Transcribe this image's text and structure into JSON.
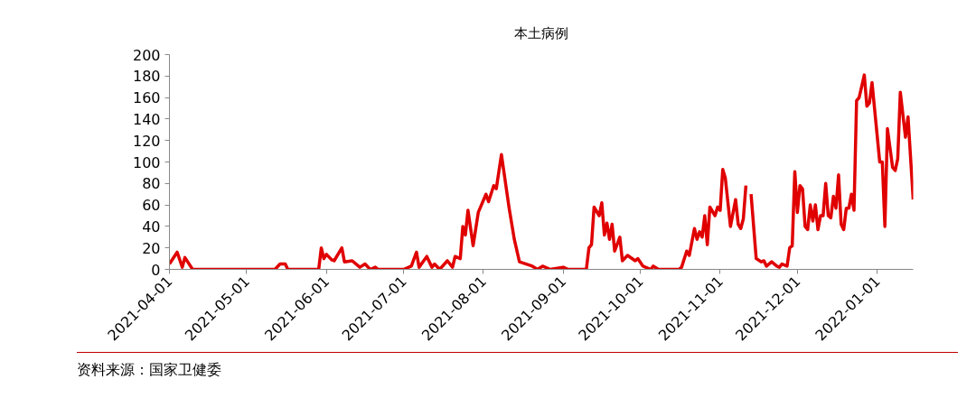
{
  "chart_data": {
    "type": "line",
    "title": "本土病例",
    "x": [
      "2021-04-01",
      "2021-04-04",
      "2021-04-06",
      "2021-04-07",
      "2021-04-10",
      "2021-05-12",
      "2021-05-14",
      "2021-05-16",
      "2021-05-17",
      "2021-05-29",
      "2021-05-30",
      "2021-05-31",
      "2021-06-01",
      "2021-06-03",
      "2021-06-04",
      "2021-06-07",
      "2021-06-08",
      "2021-06-11",
      "2021-06-14",
      "2021-06-16",
      "2021-06-18",
      "2021-06-20",
      "2021-06-21",
      "2021-07-01",
      "2021-07-04",
      "2021-07-06",
      "2021-07-07",
      "2021-07-10",
      "2021-07-12",
      "2021-07-13",
      "2021-07-15",
      "2021-07-18",
      "2021-07-20",
      "2021-07-21",
      "2021-07-23",
      "2021-07-24",
      "2021-07-25",
      "2021-07-26",
      "2021-07-28",
      "2021-07-30",
      "2021-08-02",
      "2021-08-03",
      "2021-08-05",
      "2021-08-06",
      "2021-08-08",
      "2021-08-11",
      "2021-08-13",
      "2021-08-15",
      "2021-08-20",
      "2021-08-22",
      "2021-08-24",
      "2021-08-27",
      "2021-09-01",
      "2021-09-03",
      "2021-09-10",
      "2021-09-11",
      "2021-09-12",
      "2021-09-13",
      "2021-09-15",
      "2021-09-16",
      "2021-09-17",
      "2021-09-18",
      "2021-09-19",
      "2021-09-20",
      "2021-09-21",
      "2021-09-23",
      "2021-09-24",
      "2021-09-26",
      "2021-09-29",
      "2021-09-30",
      "2021-10-02",
      "2021-10-05",
      "2021-10-06",
      "2021-10-08",
      "2021-10-12",
      "2021-10-16",
      "2021-10-17",
      "2021-10-19",
      "2021-10-20",
      "2021-10-22",
      "2021-10-23",
      "2021-10-24",
      "2021-10-25",
      "2021-10-26",
      "2021-10-27",
      "2021-10-28",
      "2021-10-30",
      "2021-10-31",
      "2021-11-01",
      "2021-11-02",
      "2021-11-03",
      "2021-11-05",
      "2021-11-07",
      "2021-11-08",
      "2021-11-09",
      "2021-11-10",
      "2021-11-11",
      "2021-11-12",
      "2021-11-13",
      "2021-11-15",
      "2021-11-17",
      "2021-11-18",
      "2021-11-19",
      "2021-11-21",
      "2021-11-23",
      "2021-11-24",
      "2021-11-25",
      "2021-11-27",
      "2021-11-28",
      "2021-11-29",
      "2021-11-30",
      "2021-12-01",
      "2021-12-02",
      "2021-12-03",
      "2021-12-04",
      "2021-12-05",
      "2021-12-06",
      "2021-12-07",
      "2021-12-08",
      "2021-12-09",
      "2021-12-10",
      "2021-12-11",
      "2021-12-12",
      "2021-12-13",
      "2021-12-14",
      "2021-12-15",
      "2021-12-16",
      "2021-12-17",
      "2021-12-18",
      "2021-12-19",
      "2021-12-20",
      "2021-12-21",
      "2021-12-22",
      "2021-12-23",
      "2021-12-24",
      "2021-12-25",
      "2021-12-27",
      "2021-12-28",
      "2021-12-29",
      "2021-12-30",
      "2022-01-02",
      "2022-01-03",
      "2022-01-04",
      "2022-01-05",
      "2022-01-07",
      "2022-01-08",
      "2022-01-09",
      "2022-01-10",
      "2022-01-12",
      "2022-01-13",
      "2022-01-15"
    ],
    "series": [
      {
        "color": "#e00000",
        "values": [
          5,
          16,
          2,
          11,
          0,
          0,
          5,
          5,
          0,
          0,
          20,
          10,
          14,
          9,
          8,
          20,
          7,
          8,
          2,
          5,
          0,
          2,
          0,
          0,
          3,
          16,
          2,
          12,
          2,
          5,
          0,
          8,
          2,
          12,
          10,
          40,
          32,
          55,
          22,
          53,
          70,
          63,
          78,
          75,
          107,
          57,
          28,
          7,
          3,
          0,
          3,
          0,
          2,
          0,
          0,
          20,
          23,
          58,
          50,
          62,
          32,
          43,
          28,
          42,
          17,
          30,
          8,
          13,
          8,
          10,
          3,
          0,
          3,
          0,
          0,
          0,
          2,
          17,
          13,
          38,
          28,
          35,
          30,
          50,
          23,
          58,
          50,
          58,
          55,
          93,
          85,
          40,
          65,
          42,
          38,
          47,
          78,
          null,
          70,
          10,
          7,
          8,
          3,
          7,
          3,
          2,
          5,
          3,
          20,
          22,
          91,
          53,
          78,
          75,
          40,
          37,
          60,
          45,
          60,
          37,
          50,
          50,
          80,
          50,
          48,
          68,
          57,
          88,
          42,
          37,
          57,
          57,
          70,
          55,
          157,
          160,
          181,
          152,
          155,
          174,
          100,
          100,
          40,
          131,
          95,
          92,
          103,
          165,
          123,
          142,
          65
        ]
      }
    ],
    "xlim": [
      "2021-04-01",
      "2022-01-15"
    ],
    "xticks": [
      "2021-04-01",
      "2021-05-01",
      "2021-06-01",
      "2021-07-01",
      "2021-08-01",
      "2021-09-01",
      "2021-10-01",
      "2021-11-01",
      "2021-12-01",
      "2022-01-01"
    ],
    "ylim": [
      0,
      200
    ],
    "yticks": [
      0,
      20,
      40,
      60,
      80,
      100,
      120,
      140,
      160,
      180,
      200
    ],
    "grid": false,
    "annotations": [
      "资料来源：国家卫健委"
    ]
  }
}
